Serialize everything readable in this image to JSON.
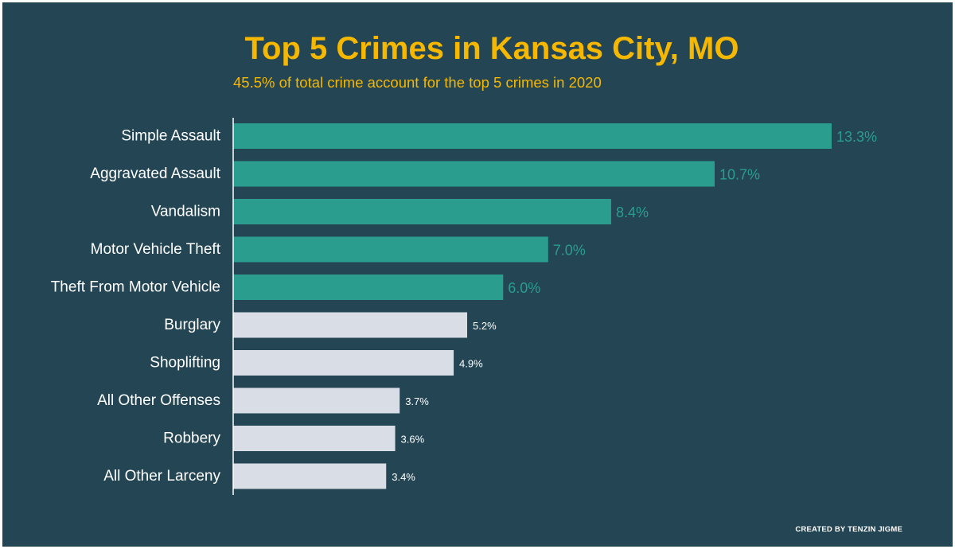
{
  "colors": {
    "background": "#244654",
    "title": "#f5b700",
    "highlight": "#2a9d8f",
    "muted": "#d9dde6",
    "label": "#ffffff",
    "axis": "#ffffff"
  },
  "chart_data": {
    "type": "bar",
    "orientation": "horizontal",
    "title": "Top 5 Crimes in Kansas City, MO",
    "subtitle": "45.5% of total crime account for the top 5 crimes in 2020",
    "xlim": [
      0,
      13.3
    ],
    "grid": false,
    "categories": [
      "Simple Assault",
      "Aggravated Assault",
      "Vandalism",
      "Motor Vehicle Theft",
      "Theft From Motor Vehicle",
      "Burglary",
      "Shoplifting",
      "All Other Offenses",
      "Robbery",
      "All Other Larceny"
    ],
    "values": [
      13.3,
      10.7,
      8.4,
      7.0,
      6.0,
      5.2,
      4.9,
      3.7,
      3.6,
      3.4
    ],
    "value_labels": [
      "13.3%",
      "10.7%",
      "8.4%",
      "7.0%",
      "6.0%",
      "5.2%",
      "4.9%",
      "3.7%",
      "3.6%",
      "3.4%"
    ],
    "highlight_top_n": 5
  },
  "footer": {
    "credit": "CREATED BY TENZIN JIGME"
  }
}
